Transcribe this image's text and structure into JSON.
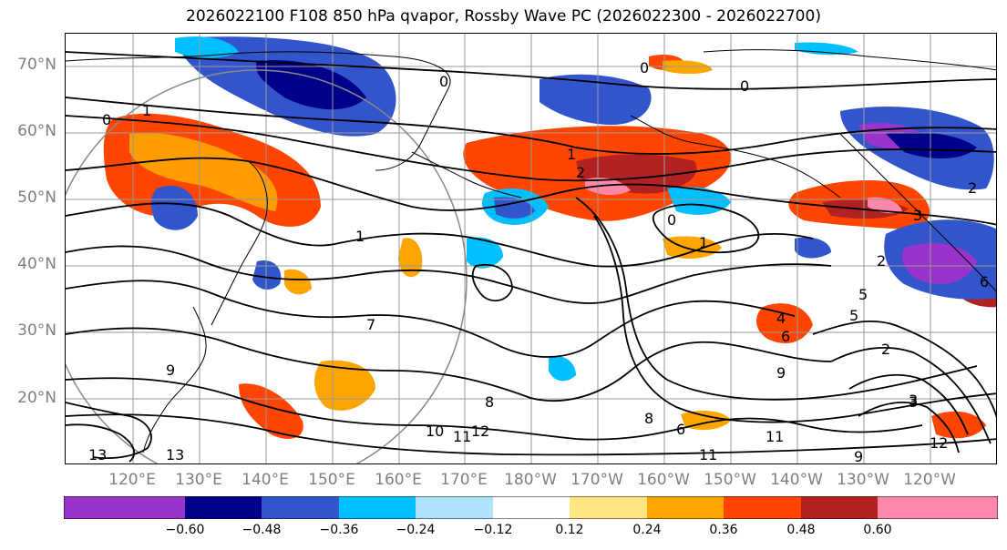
{
  "title": "2026022100 F108 850 hPa qvapor, Rossby Wave PC (2026022300 - 2026022700)",
  "lat_labels": [
    "70°N",
    "60°N",
    "50°N",
    "40°N",
    "30°N",
    "20°N"
  ],
  "lon_labels": [
    "120°E",
    "130°E",
    "140°E",
    "150°E",
    "160°E",
    "170°E",
    "180°W",
    "170°W",
    "160°W",
    "150°W",
    "140°W",
    "130°W",
    "120°W"
  ],
  "colorbar": {
    "tick_labels": [
      "−0.60",
      "−0.48",
      "−0.36",
      "−0.24",
      "−0.12",
      "0.12",
      "0.24",
      "0.36",
      "0.48",
      "0.60"
    ],
    "colors": [
      "#9933cc",
      "#00008b",
      "#3355cc",
      "#00bfff",
      "#b0e2ff",
      "#ffffff",
      "#ffe680",
      "#ffa500",
      "#ff4500",
      "#b22222",
      "#ff88aa"
    ]
  },
  "contour_labels": [
    "0",
    "1",
    "0",
    "0",
    "0",
    "1",
    "2",
    "0",
    "1",
    "2",
    "1",
    "3",
    "2",
    "4",
    "5",
    "6",
    "7",
    "8",
    "9",
    "10",
    "11",
    "12",
    "13",
    "9",
    "8",
    "6",
    "11",
    "11",
    "9",
    "3",
    "3",
    "2",
    "12",
    "13",
    "5",
    "6"
  ],
  "shading": {
    "positive_color": "#ff4500",
    "orange_color": "#ffa500",
    "yellow_color": "#ffe680",
    "darkred_color": "#b22222",
    "pink_color": "#ff88aa",
    "negative_color": "#3355cc",
    "navy_color": "#00008b",
    "cyan_color": "#00bfff",
    "purple_color": "#9933cc"
  }
}
